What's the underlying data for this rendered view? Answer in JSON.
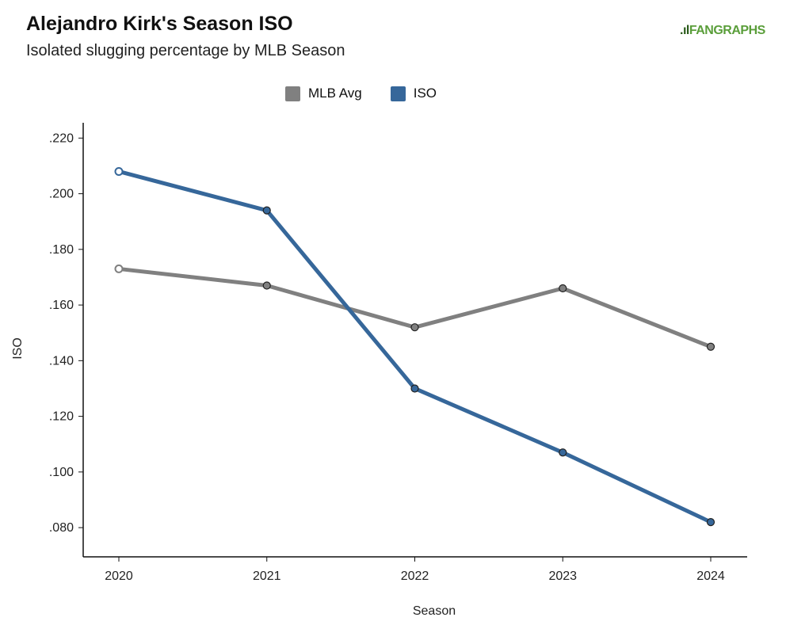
{
  "logo": {
    "mark": ".ıl",
    "text": "FANGRAPHS"
  },
  "chart_data": {
    "type": "line",
    "title": "Alejandro Kirk's Season ISO",
    "subtitle": "Isolated slugging percentage by MLB Season",
    "xlabel": "Season",
    "ylabel": "ISO",
    "x": [
      "2020",
      "2021",
      "2022",
      "2023",
      "2024"
    ],
    "ylim": [
      0.0695,
      0.2255
    ],
    "yticks": [
      0.08,
      0.1,
      0.12,
      0.14,
      0.16,
      0.18,
      0.2,
      0.22
    ],
    "ytick_labels": [
      ".080",
      ".100",
      ".120",
      ".140",
      ".160",
      ".180",
      ".200",
      ".220"
    ],
    "legend_position": "top-center",
    "series": [
      {
        "name": "MLB Avg",
        "color": "#808080",
        "values": [
          0.173,
          0.167,
          0.152,
          0.166,
          0.145
        ]
      },
      {
        "name": "ISO",
        "color": "#36679a",
        "values": [
          0.208,
          0.194,
          0.13,
          0.107,
          0.082
        ]
      }
    ]
  }
}
